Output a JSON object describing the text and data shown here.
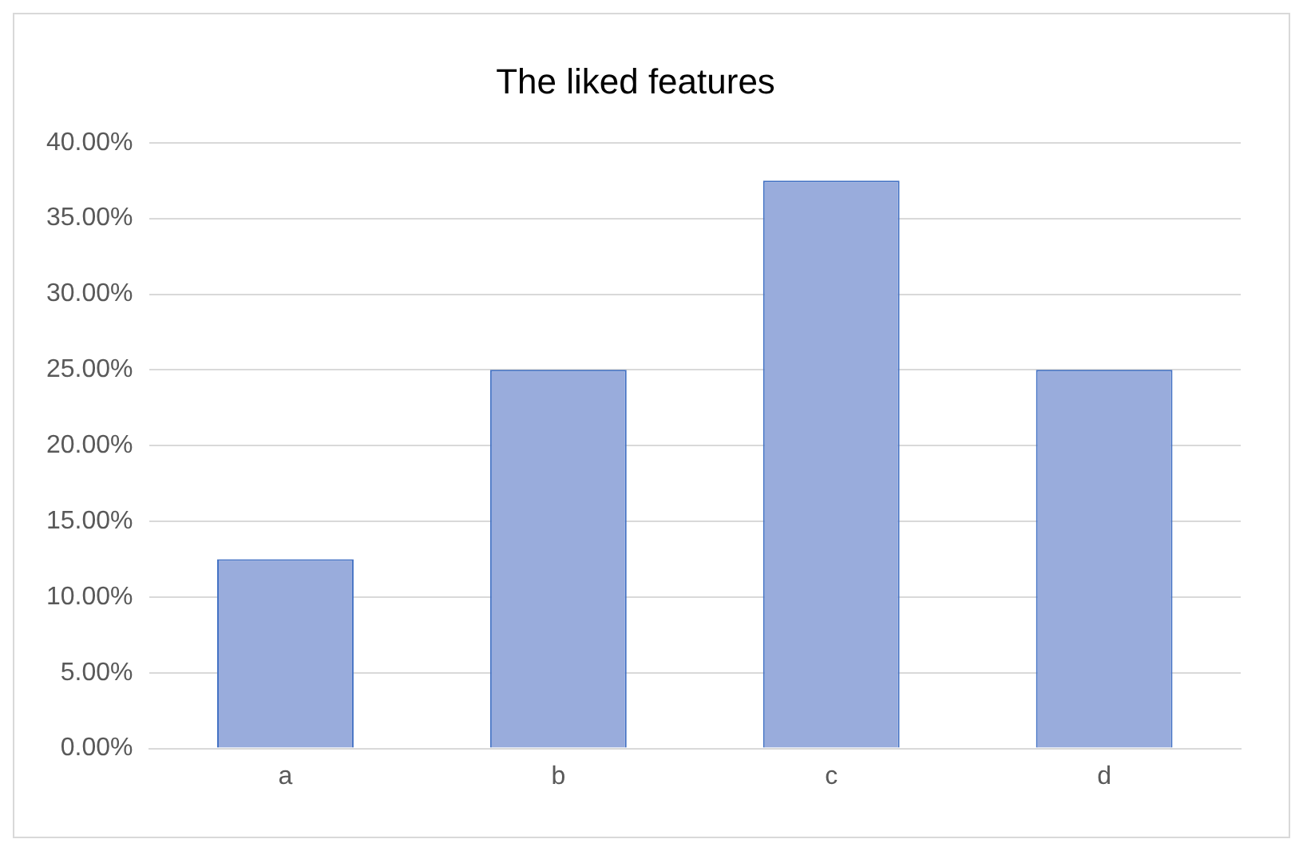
{
  "chart_data": {
    "type": "bar",
    "title": "The liked features",
    "categories": [
      "a",
      "b",
      "c",
      "d"
    ],
    "values": [
      12.5,
      25,
      37.5,
      25
    ],
    "color": "#99acdc",
    "ylim": [
      0,
      40
    ],
    "yticks": [
      {
        "value": 0,
        "label": "0.00%"
      },
      {
        "value": 5,
        "label": "5.00%"
      },
      {
        "value": 10,
        "label": "10.00%"
      },
      {
        "value": 15,
        "label": "15.00%"
      },
      {
        "value": 20,
        "label": "20.00%"
      },
      {
        "value": 25,
        "label": "25.00%"
      },
      {
        "value": 30,
        "label": "30.00%"
      },
      {
        "value": 35,
        "label": "35.00%"
      },
      {
        "value": 40,
        "label": "40.00%"
      }
    ],
    "grid": "y",
    "legend": false
  }
}
